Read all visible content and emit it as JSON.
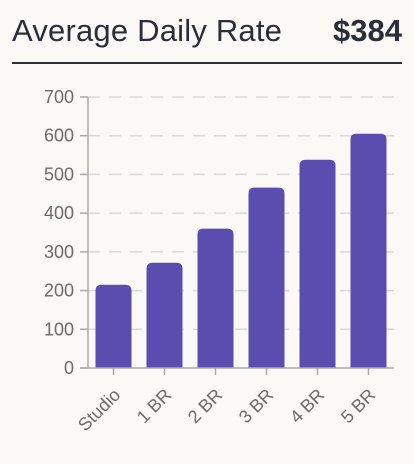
{
  "header": {
    "title": "Average Daily Rate",
    "value": "$384"
  },
  "colors": {
    "bar": "#5b4caf",
    "grid": "#d9d9d9",
    "axis": "#aaaaaa",
    "text": "#2b2e3a"
  },
  "chart_data": {
    "type": "bar",
    "categories": [
      "Studio",
      "1 BR",
      "2 BR",
      "3 BR",
      "4 BR",
      "5 BR"
    ],
    "values": [
      215,
      272,
      360,
      466,
      538,
      605
    ],
    "ylim": [
      0,
      700
    ],
    "yticks": [
      0,
      100,
      200,
      300,
      400,
      500,
      600,
      700
    ],
    "grid": true,
    "title": "",
    "xlabel": "",
    "ylabel": ""
  }
}
